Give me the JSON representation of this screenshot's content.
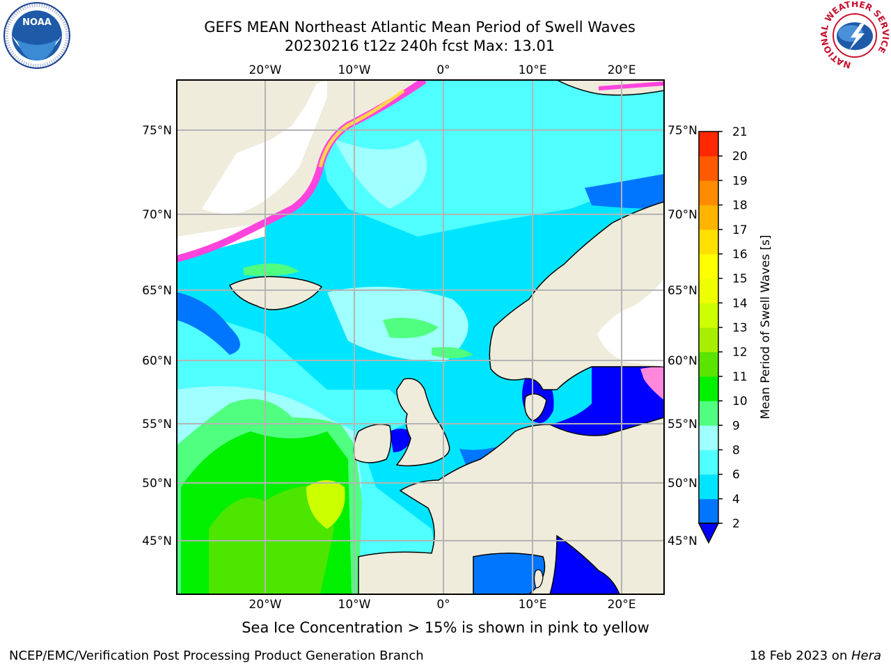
{
  "header": {
    "title_line1": "GEFS MEAN Northeast Atlantic Mean Period of Swell Waves",
    "title_line2": "20230216 t12z 240h fcst   Max: 13.01"
  },
  "logos": {
    "left": "NOAA",
    "right": "NATIONAL WEATHER SERVICE"
  },
  "map": {
    "lon_labels": [
      "20°W",
      "10°W",
      "0°",
      "10°E",
      "20°E"
    ],
    "lat_labels": [
      "75°N",
      "70°N",
      "65°N",
      "60°N",
      "55°N",
      "50°N",
      "45°N"
    ],
    "colors": {
      "land": "#efecdc",
      "gridline": "#b4b4b4",
      "ice_pink": "#ff44dd",
      "ice_yellow": "#ffee33"
    }
  },
  "colorbar": {
    "label": "Mean Period of Swell Waves [s]",
    "ticks": [
      "2",
      "4",
      "6",
      "8",
      "9",
      "10",
      "11",
      "12",
      "13",
      "14",
      "15",
      "16",
      "17",
      "18",
      "19",
      "20",
      "21"
    ],
    "colors": [
      "#0076ff",
      "#00e5ff",
      "#50ffff",
      "#a0ffff",
      "#50ff80",
      "#00f000",
      "#5ae400",
      "#a8ee00",
      "#ccff00",
      "#eeff00",
      "#ffff00",
      "#ffe000",
      "#ffb400",
      "#ff8c00",
      "#ff5a00",
      "#ff2800",
      "#ff0000"
    ],
    "under_color": "#0000ff"
  },
  "note": "Sea Ice Concentration > 15% is shown in pink to yellow",
  "footer": {
    "left": "NCEP/EMC/Verification Post Processing Product Generation Branch",
    "date": "18 Feb 2023 on ",
    "host": "Hera"
  }
}
